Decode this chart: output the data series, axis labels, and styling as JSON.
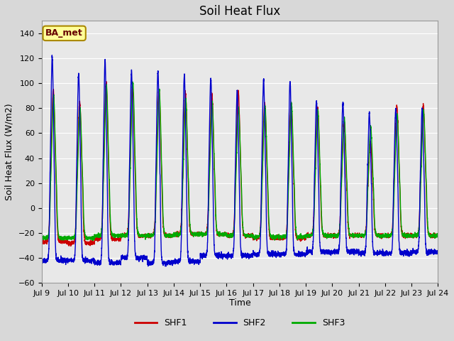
{
  "title": "Soil Heat Flux",
  "ylabel": "Soil Heat Flux (W/m2)",
  "xlabel": "Time",
  "ylim": [
    -60,
    150
  ],
  "yticks": [
    -60,
    -40,
    -20,
    0,
    20,
    40,
    60,
    80,
    100,
    120,
    140
  ],
  "x_labels": [
    "Jul 9",
    "Jul 10",
    "Jul 11",
    "Jul 12",
    "Jul 13",
    "Jul 14",
    "Jul 15",
    "Jul 16",
    "Jul 17",
    "Jul 18",
    "Jul 19",
    "Jul 20",
    "Jul 21",
    "Jul 22",
    "Jul 23",
    "Jul 24"
  ],
  "bg_color": "#d8d8d8",
  "plot_bg": "#e8e8e8",
  "shf1_color": "#cc0000",
  "shf2_color": "#0000cc",
  "shf3_color": "#00aa00",
  "annotation_text": "BA_met",
  "annotation_bg": "#ffff99",
  "annotation_border": "#aa8800",
  "legend_labels": [
    "SHF1",
    "SHF2",
    "SHF3"
  ],
  "num_days": 15,
  "points_per_day": 288,
  "shf1_peaks": [
    95,
    85,
    100,
    98,
    95,
    93,
    92,
    94,
    84,
    84,
    80,
    69,
    53,
    82,
    82
  ],
  "shf2_peaks": [
    121,
    108,
    118,
    110,
    110,
    107,
    104,
    94,
    103,
    101,
    86,
    84,
    76,
    80,
    80
  ],
  "shf3_peaks": [
    90,
    80,
    99,
    101,
    95,
    88,
    85,
    80,
    82,
    84,
    78,
    72,
    65,
    75,
    78
  ],
  "shf1_troughs": [
    -27,
    -28,
    -25,
    -22,
    -22,
    -21,
    -21,
    -22,
    -24,
    -24,
    -22,
    -22,
    -22,
    -22,
    -22
  ],
  "shf2_troughs": [
    -42,
    -42,
    -44,
    -40,
    -44,
    -43,
    -38,
    -38,
    -37,
    -37,
    -35,
    -35,
    -36,
    -36,
    -35
  ],
  "shf3_troughs": [
    -24,
    -24,
    -22,
    -22,
    -22,
    -21,
    -21,
    -22,
    -23,
    -23,
    -22,
    -22,
    -22,
    -22,
    -22
  ],
  "title_fontsize": 12,
  "label_fontsize": 9,
  "tick_fontsize": 8,
  "legend_fontsize": 9
}
